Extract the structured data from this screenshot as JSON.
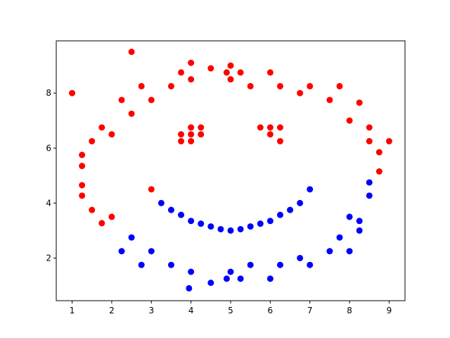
{
  "chart_data": {
    "type": "scatter",
    "xlim": [
      0.6,
      9.4
    ],
    "ylim": [
      0.45,
      9.9
    ],
    "x_ticks": [
      1,
      2,
      3,
      4,
      5,
      6,
      7,
      8,
      9
    ],
    "y_ticks": [
      2,
      4,
      6,
      8
    ],
    "grid": false,
    "legend": "none",
    "series": [
      {
        "color": "#ff0000",
        "points": [
          [
            1.0,
            8.0
          ],
          [
            1.25,
            5.75
          ],
          [
            1.25,
            5.35
          ],
          [
            1.25,
            4.65
          ],
          [
            1.25,
            4.27
          ],
          [
            1.5,
            6.25
          ],
          [
            1.5,
            3.75
          ],
          [
            1.75,
            6.75
          ],
          [
            1.75,
            3.27
          ],
          [
            2.0,
            6.5
          ],
          [
            2.0,
            3.5
          ],
          [
            2.25,
            7.75
          ],
          [
            2.5,
            9.5
          ],
          [
            2.5,
            7.25
          ],
          [
            2.75,
            8.25
          ],
          [
            3.0,
            7.75
          ],
          [
            3.0,
            4.5
          ],
          [
            3.5,
            8.25
          ],
          [
            3.75,
            8.75
          ],
          [
            4.0,
            9.1
          ],
          [
            4.0,
            8.5
          ],
          [
            4.5,
            8.9
          ],
          [
            4.9,
            8.75
          ],
          [
            5.0,
            9.0
          ],
          [
            5.0,
            8.5
          ],
          [
            5.25,
            8.75
          ],
          [
            5.5,
            8.25
          ],
          [
            6.0,
            8.75
          ],
          [
            6.25,
            8.25
          ],
          [
            6.75,
            8.0
          ],
          [
            7.0,
            8.25
          ],
          [
            7.5,
            7.75
          ],
          [
            7.75,
            8.25
          ],
          [
            8.0,
            7.0
          ],
          [
            8.25,
            7.65
          ],
          [
            8.5,
            6.75
          ],
          [
            8.5,
            6.25
          ],
          [
            8.75,
            5.85
          ],
          [
            8.75,
            5.15
          ],
          [
            9.0,
            6.25
          ],
          [
            3.75,
            6.5
          ],
          [
            3.75,
            6.25
          ],
          [
            4.0,
            6.75
          ],
          [
            4.0,
            6.5
          ],
          [
            4.0,
            6.25
          ],
          [
            4.25,
            6.75
          ],
          [
            4.25,
            6.5
          ],
          [
            5.75,
            6.75
          ],
          [
            6.0,
            6.75
          ],
          [
            6.0,
            6.5
          ],
          [
            6.25,
            6.75
          ],
          [
            6.25,
            6.25
          ]
        ]
      },
      {
        "color": "#0000ff",
        "points": [
          [
            3.25,
            4.0
          ],
          [
            3.5,
            3.75
          ],
          [
            3.75,
            3.57
          ],
          [
            4.0,
            3.35
          ],
          [
            4.25,
            3.25
          ],
          [
            4.5,
            3.15
          ],
          [
            4.75,
            3.05
          ],
          [
            5.0,
            3.0
          ],
          [
            5.25,
            3.05
          ],
          [
            5.5,
            3.15
          ],
          [
            5.75,
            3.25
          ],
          [
            6.0,
            3.35
          ],
          [
            6.25,
            3.57
          ],
          [
            6.5,
            3.75
          ],
          [
            6.75,
            4.0
          ],
          [
            7.0,
            4.5
          ],
          [
            2.25,
            2.25
          ],
          [
            2.5,
            2.75
          ],
          [
            2.75,
            1.75
          ],
          [
            3.0,
            2.25
          ],
          [
            3.5,
            1.75
          ],
          [
            4.0,
            1.5
          ],
          [
            3.95,
            0.9
          ],
          [
            4.5,
            1.1
          ],
          [
            4.9,
            1.25
          ],
          [
            5.0,
            1.5
          ],
          [
            5.25,
            1.25
          ],
          [
            5.5,
            1.75
          ],
          [
            6.0,
            1.25
          ],
          [
            6.25,
            1.75
          ],
          [
            6.75,
            2.0
          ],
          [
            7.0,
            1.75
          ],
          [
            7.5,
            2.25
          ],
          [
            7.75,
            2.75
          ],
          [
            8.0,
            3.5
          ],
          [
            8.0,
            2.25
          ],
          [
            8.25,
            3.35
          ],
          [
            8.25,
            3.0
          ],
          [
            8.5,
            4.75
          ],
          [
            8.5,
            4.27
          ]
        ]
      }
    ]
  }
}
